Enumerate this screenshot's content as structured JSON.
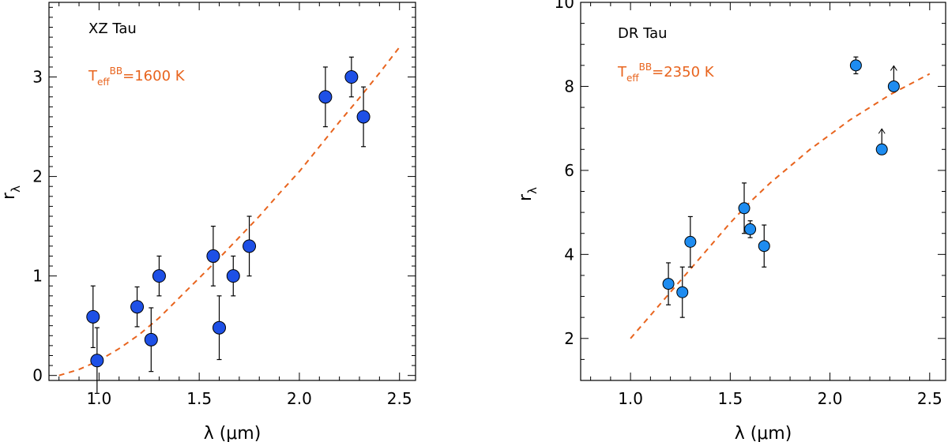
{
  "colors": {
    "fit_line": "#e8641e",
    "marker_xz": "#1e50e6",
    "marker_dr": "#1e8cf0",
    "axis": "#000000"
  },
  "chart_data": [
    {
      "type": "scatter",
      "panel_label": "XZ Tau",
      "teff": {
        "symbol": "T",
        "sub": "eff",
        "sup": "BB",
        "value": "=1600 K"
      },
      "xlabel": "λ (μm)",
      "ylabel": "r",
      "ylabel_sub": "λ",
      "xlim": [
        0.75,
        2.58
      ],
      "ylim": [
        -0.05,
        3.75
      ],
      "xticks": [
        1.0,
        1.5,
        2.0,
        2.5
      ],
      "xtick_labels": [
        "1.0",
        "1.5",
        "2.0",
        "2.5"
      ],
      "yticks": [
        0,
        1,
        2,
        3
      ],
      "ytick_labels": [
        "0",
        "1",
        "2",
        "3"
      ],
      "points": [
        {
          "x": 0.97,
          "y": 0.59,
          "err": 0.31
        },
        {
          "x": 0.99,
          "y": 0.15,
          "err": 0.33
        },
        {
          "x": 1.19,
          "y": 0.69,
          "err": 0.2
        },
        {
          "x": 1.26,
          "y": 0.36,
          "err": 0.32
        },
        {
          "x": 1.3,
          "y": 1.0,
          "err": 0.2
        },
        {
          "x": 1.57,
          "y": 1.2,
          "err": 0.3
        },
        {
          "x": 1.6,
          "y": 0.48,
          "err": 0.32
        },
        {
          "x": 1.67,
          "y": 1.0,
          "err": 0.2
        },
        {
          "x": 1.75,
          "y": 1.3,
          "err": 0.3
        },
        {
          "x": 2.13,
          "y": 2.8,
          "err": 0.3
        },
        {
          "x": 2.26,
          "y": 3.0,
          "err": 0.2
        },
        {
          "x": 2.32,
          "y": 2.6,
          "err": 0.3
        }
      ],
      "fit_curve": {
        "x": [
          0.8,
          0.9,
          1.0,
          1.1,
          1.2,
          1.3,
          1.4,
          1.5,
          1.6,
          1.7,
          1.8,
          1.9,
          2.0,
          2.1,
          2.2,
          2.3,
          2.4,
          2.5
        ],
        "y": [
          0.0,
          0.06,
          0.15,
          0.27,
          0.41,
          0.58,
          0.78,
          0.98,
          1.18,
          1.39,
          1.6,
          1.83,
          2.05,
          2.3,
          2.55,
          2.79,
          3.04,
          3.3
        ]
      }
    },
    {
      "type": "scatter",
      "panel_label": "DR Tau",
      "teff": {
        "symbol": "T",
        "sub": "eff",
        "sup": "BB",
        "value": "=2350 K"
      },
      "xlabel": "λ (μm)",
      "ylabel": "r",
      "ylabel_sub": "λ",
      "xlim": [
        0.75,
        2.58
      ],
      "ylim": [
        1.0,
        10.0
      ],
      "xticks": [
        1.0,
        1.5,
        2.0,
        2.5
      ],
      "xtick_labels": [
        "1.0",
        "1.5",
        "2.0",
        "2.5"
      ],
      "yticks": [
        2,
        4,
        6,
        8,
        10
      ],
      "ytick_labels": [
        "2",
        "4",
        "6",
        "8",
        "10"
      ],
      "points": [
        {
          "x": 1.19,
          "y": 3.3,
          "err": 0.5
        },
        {
          "x": 1.26,
          "y": 3.1,
          "err": 0.6
        },
        {
          "x": 1.3,
          "y": 4.3,
          "err": 0.6
        },
        {
          "x": 1.57,
          "y": 5.1,
          "err": 0.6
        },
        {
          "x": 1.6,
          "y": 4.6,
          "err": 0.2
        },
        {
          "x": 1.67,
          "y": 4.2,
          "err": 0.5
        },
        {
          "x": 2.13,
          "y": 8.5,
          "err": 0.2
        },
        {
          "x": 2.26,
          "y": 6.5,
          "lower_limit": true
        },
        {
          "x": 2.32,
          "y": 8.0,
          "lower_limit": true
        }
      ],
      "fit_curve": {
        "x": [
          1.0,
          1.1,
          1.2,
          1.3,
          1.4,
          1.5,
          1.6,
          1.7,
          1.8,
          1.9,
          2.0,
          2.1,
          2.2,
          2.3,
          2.4,
          2.5
        ],
        "y": [
          2.0,
          2.55,
          3.1,
          3.65,
          4.2,
          4.75,
          5.25,
          5.7,
          6.1,
          6.5,
          6.85,
          7.2,
          7.5,
          7.8,
          8.05,
          8.3
        ]
      }
    }
  ]
}
